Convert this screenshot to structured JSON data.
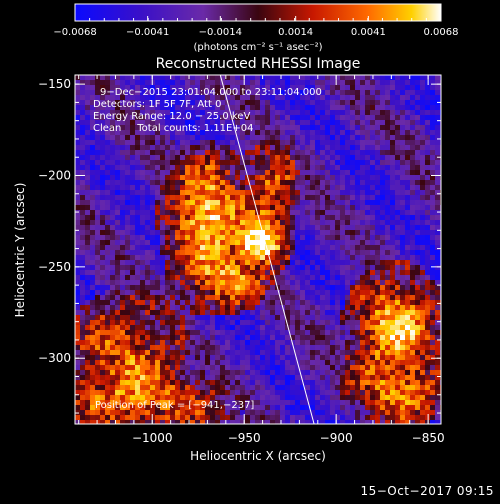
{
  "chart_data": {
    "type": "heatmap",
    "title": "Reconstructed RHESSI Image",
    "xlabel": "Heliocentric X (arcsec)",
    "ylabel": "Heliocentric Y (arcsec)",
    "xlim": [
      -1042,
      -843
    ],
    "ylim": [
      -336,
      -145
    ],
    "xticks": [
      -1000,
      -950,
      -900,
      -850
    ],
    "xtick_labels": [
      "−1000",
      "−950",
      "−900",
      "−850"
    ],
    "yticks": [
      -300,
      -250,
      -200,
      -150
    ],
    "ytick_labels": [
      "−300",
      "−250",
      "−200",
      "−150"
    ],
    "colorbar": {
      "min": -0.0068,
      "max": 0.0068,
      "tick_values": [
        -0.0068,
        -0.0041,
        -0.0014,
        0.0014,
        0.0041,
        0.0068
      ],
      "tick_labels": [
        "−0.0068",
        "−0.0041",
        "−0.0014",
        "0.0014",
        "0.0041",
        "0.0068"
      ],
      "label": "(photons cm⁻² s⁻¹ asec⁻²)"
    },
    "annotations": [
      "9−Dec−2015 23:01:04.000 to 23:11:04.000",
      "Detectors: 1F 5F 7F, Att 0",
      "Energy Range: 12.0 − 25.0 keV",
      "Clean     Total counts: 1.11E+04"
    ],
    "peak_label": "Position of Peak = [−941,−237]",
    "peak": [
      -941,
      -237
    ],
    "sources": [
      {
        "x": -941,
        "y": -237,
        "sx": 8,
        "sy": 8,
        "amp": 1.0
      },
      {
        "x": -970,
        "y": -222,
        "sx": 13,
        "sy": 19,
        "amp": 0.78
      },
      {
        "x": -960,
        "y": -258,
        "sx": 13,
        "sy": 9,
        "amp": 0.55
      },
      {
        "x": -935,
        "y": -205,
        "sx": 8,
        "sy": 14,
        "amp": 0.45
      },
      {
        "x": -868,
        "y": -282,
        "sx": 14,
        "sy": 17,
        "amp": 0.72
      },
      {
        "x": -866,
        "y": -318,
        "sx": 16,
        "sy": 11,
        "amp": 0.5
      },
      {
        "x": -1015,
        "y": -300,
        "sx": 20,
        "sy": 20,
        "amp": 0.45
      },
      {
        "x": -1000,
        "y": -325,
        "sx": 30,
        "sy": 10,
        "amp": 0.35
      }
    ],
    "limb_line": [
      [
        -963,
        -145
      ],
      [
        -912,
        -336
      ]
    ],
    "colors": {
      "background": "#000000",
      "limb": "#ffffff",
      "colormap": [
        "#0a0aff",
        "#3a10c8",
        "#6a2aa8",
        "#3a0510",
        "#c81800",
        "#ff6a00",
        "#ffd000",
        "#ffffff"
      ]
    }
  },
  "footer": {
    "timestamp": "15−Oct−2017 09:15"
  }
}
